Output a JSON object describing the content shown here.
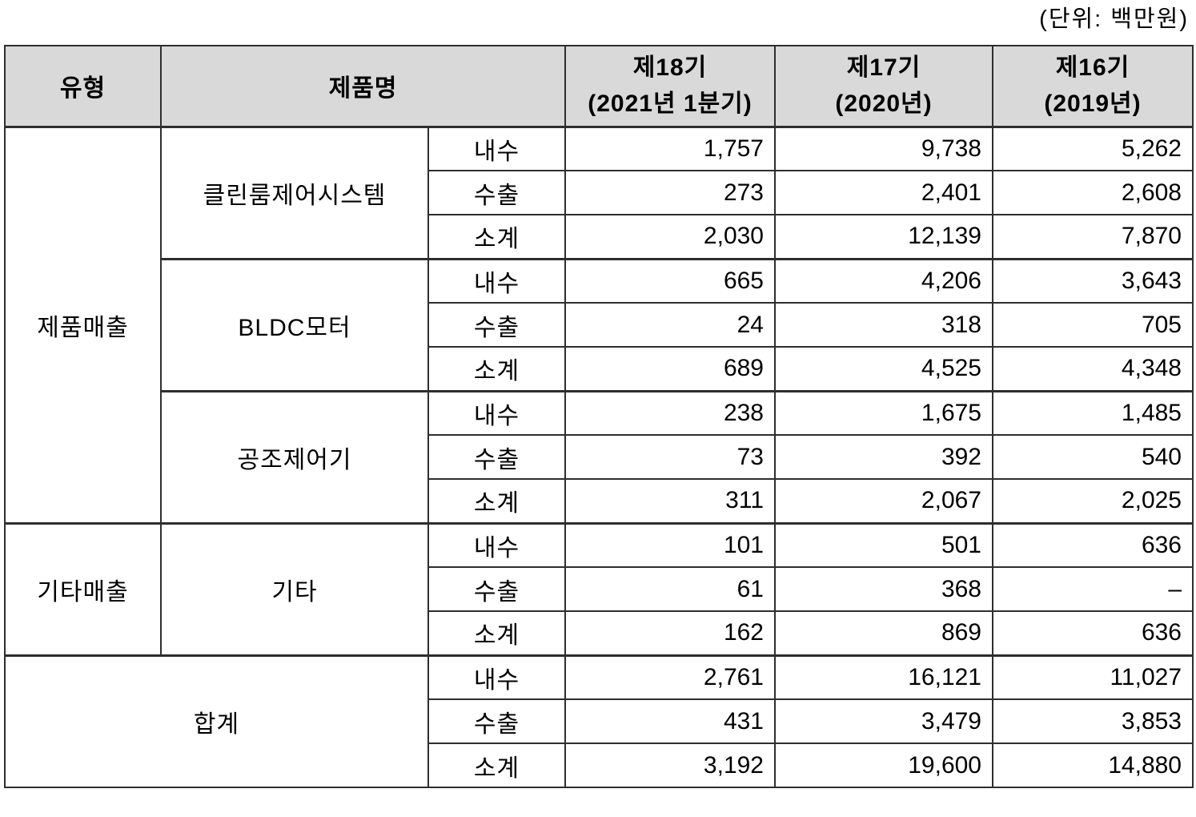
{
  "unit_label": "(단위: 백만원)",
  "header": {
    "type": "유형",
    "product": "제품명",
    "periods": [
      {
        "title": "제18기",
        "subtitle": "(2021년 1분기)"
      },
      {
        "title": "제17기",
        "subtitle": "(2020년)"
      },
      {
        "title": "제16기",
        "subtitle": "(2019년)"
      }
    ]
  },
  "labels": {
    "product_sales": "제품매출",
    "other_sales": "기타매출",
    "total": "합계",
    "cleanroom": "클린룸제어시스템",
    "bldc_motor": "BLDC모터",
    "hvac_controller": "공조제어기",
    "other": "기타"
  },
  "rows": [
    {
      "channel": "내수",
      "p18": "1,757",
      "p17": "9,738",
      "p16": "5,262"
    },
    {
      "channel": "수출",
      "p18": "273",
      "p17": "2,401",
      "p16": "2,608"
    },
    {
      "channel": "소계",
      "p18": "2,030",
      "p17": "12,139",
      "p16": "7,870"
    },
    {
      "channel": "내수",
      "p18": "665",
      "p17": "4,206",
      "p16": "3,643"
    },
    {
      "channel": "수출",
      "p18": "24",
      "p17": "318",
      "p16": "705"
    },
    {
      "channel": "소계",
      "p18": "689",
      "p17": "4,525",
      "p16": "4,348"
    },
    {
      "channel": "내수",
      "p18": "238",
      "p17": "1,675",
      "p16": "1,485"
    },
    {
      "channel": "수출",
      "p18": "73",
      "p17": "392",
      "p16": "540"
    },
    {
      "channel": "소계",
      "p18": "311",
      "p17": "2,067",
      "p16": "2,025"
    },
    {
      "channel": "내수",
      "p18": "101",
      "p17": "501",
      "p16": "636"
    },
    {
      "channel": "수출",
      "p18": "61",
      "p17": "368",
      "p16": "–"
    },
    {
      "channel": "소계",
      "p18": "162",
      "p17": "869",
      "p16": "636"
    },
    {
      "channel": "내수",
      "p18": "2,761",
      "p17": "16,121",
      "p16": "11,027"
    },
    {
      "channel": "수출",
      "p18": "431",
      "p17": "3,479",
      "p16": "3,853"
    },
    {
      "channel": "소계",
      "p18": "3,192",
      "p17": "19,600",
      "p16": "14,880"
    }
  ]
}
